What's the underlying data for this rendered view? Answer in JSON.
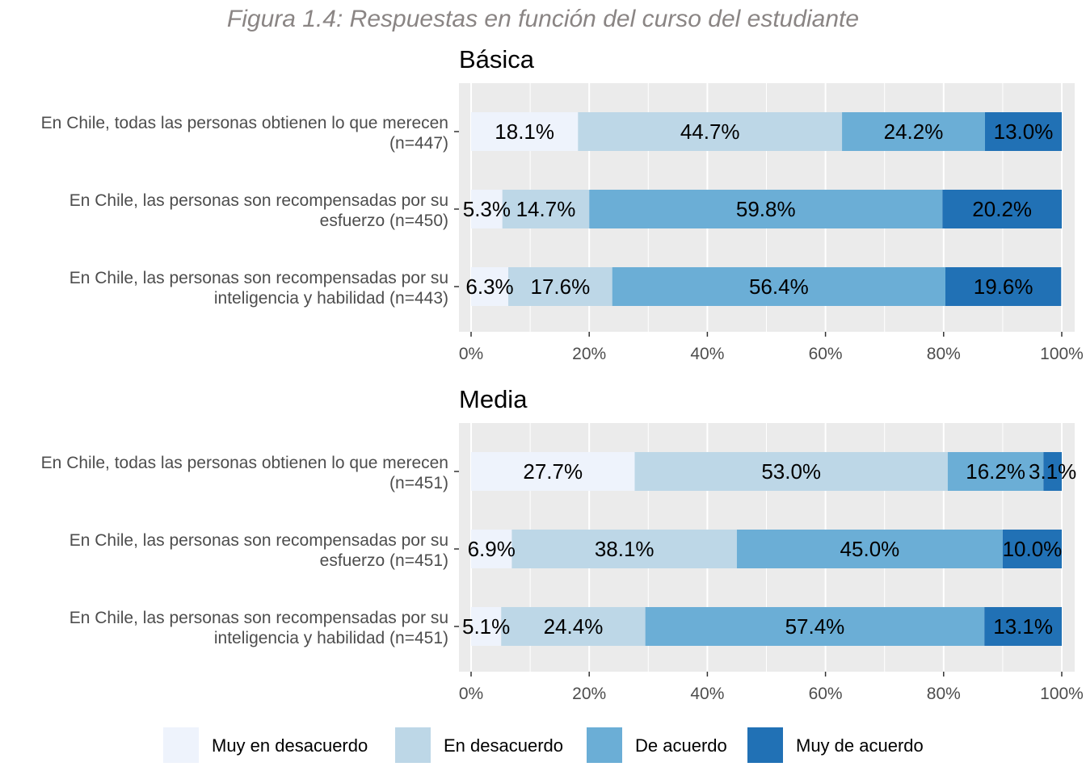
{
  "title": "Figura 1.4: Respuestas en función del curso del estudiante",
  "colors": {
    "Muy en desacuerdo": "#eef3fc",
    "En desacuerdo": "#bdd7e7",
    "De acuerdo": "#6baed6",
    "Muy de acuerdo": "#2171b5",
    "panel_bg": "#ebebeb",
    "grid": "#ffffff"
  },
  "chart_data": [
    {
      "type": "bar",
      "orientation": "horizontal-stacked-100",
      "title": "Básica",
      "categories": [
        [
          "En Chile, todas las personas obtienen lo que merecen",
          "(n=447)"
        ],
        [
          "En Chile, las personas son recompensadas por su",
          "esfuerzo (n=450)"
        ],
        [
          "En Chile, las personas son recompensadas por su",
          "inteligencia y habilidad (n=443)"
        ]
      ],
      "series": [
        {
          "name": "Muy en desacuerdo",
          "values": [
            18.1,
            5.3,
            6.3
          ],
          "labels": [
            "18.1%",
            "5.3%",
            "6.3%"
          ]
        },
        {
          "name": "En desacuerdo",
          "values": [
            44.7,
            14.7,
            17.6
          ],
          "labels": [
            "44.7%",
            "14.7%",
            "17.6%"
          ]
        },
        {
          "name": "De acuerdo",
          "values": [
            24.2,
            59.8,
            56.4
          ],
          "labels": [
            "24.2%",
            "59.8%",
            "56.4%"
          ]
        },
        {
          "name": "Muy de acuerdo",
          "values": [
            13.0,
            20.2,
            19.6
          ],
          "labels": [
            "13.0%",
            "20.2%",
            "19.6%"
          ]
        }
      ],
      "xlim": [
        0,
        100
      ],
      "xticks": [
        0,
        20,
        40,
        60,
        80,
        100
      ],
      "xtick_labels": [
        "0%",
        "20%",
        "40%",
        "60%",
        "80%",
        "100%"
      ]
    },
    {
      "type": "bar",
      "orientation": "horizontal-stacked-100",
      "title": "Media",
      "categories": [
        [
          "En Chile, todas las personas obtienen lo que merecen",
          "(n=451)"
        ],
        [
          "En Chile, las personas son recompensadas por su",
          "esfuerzo (n=451)"
        ],
        [
          "En Chile, las personas son recompensadas por su",
          "inteligencia y habilidad (n=451)"
        ]
      ],
      "series": [
        {
          "name": "Muy en desacuerdo",
          "values": [
            27.7,
            6.9,
            5.1
          ],
          "labels": [
            "27.7%",
            "6.9%",
            "5.1%"
          ]
        },
        {
          "name": "En desacuerdo",
          "values": [
            53.0,
            38.1,
            24.4
          ],
          "labels": [
            "53.0%",
            "38.1%",
            "24.4%"
          ]
        },
        {
          "name": "De acuerdo",
          "values": [
            16.2,
            45.0,
            57.4
          ],
          "labels": [
            "16.2%",
            "45.0%",
            "57.4%"
          ]
        },
        {
          "name": "Muy de acuerdo",
          "values": [
            3.1,
            10.0,
            13.1
          ],
          "labels": [
            "3.1%",
            "10.0%",
            "13.1%"
          ]
        }
      ],
      "xlim": [
        0,
        100
      ],
      "xticks": [
        0,
        20,
        40,
        60,
        80,
        100
      ],
      "xtick_labels": [
        "0%",
        "20%",
        "40%",
        "60%",
        "80%",
        "100%"
      ]
    }
  ],
  "legend": {
    "position": "bottom",
    "items": [
      "Muy en desacuerdo",
      "En desacuerdo",
      "De acuerdo",
      "Muy de acuerdo"
    ]
  }
}
